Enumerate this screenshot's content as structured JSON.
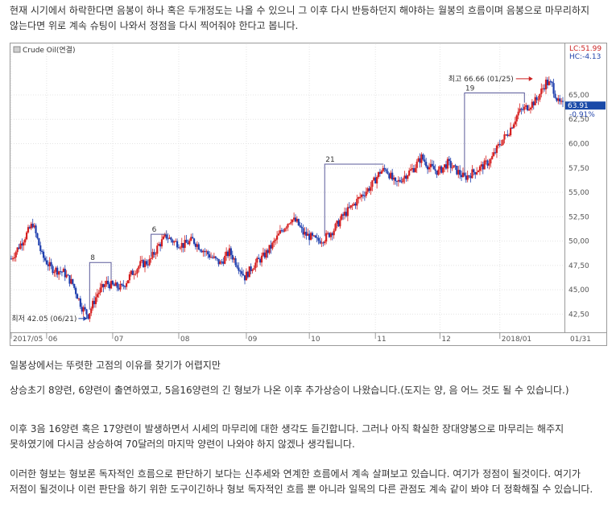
{
  "paragraphs": {
    "p1": "현재 시기에서 하락한다면 음봉이 하나 혹은 두개정도는 나올 수 있으니 그 이후 다시 반등하던지 해야하는 월봉의 흐름이며 음봉으로 마무리하지 않는다면 위로 계속 슈팅이 나와서 정점을 다시 찍어줘야 한다고 봅니다.",
    "p2": "일봉상에서는 뚜렷한 고점의 이유를 찾기가 어렵지만",
    "p3": "상승초기 8양련, 6양련이 출연하였고, 5음16양련의 긴 형보가 나온 이후 추가상승이 나왔습니다.(도지는 양, 음 어느 것도 될 수 있습니다.)",
    "p4": "이후 3음 16양련 혹은 17양련이 발생하면서 시세의 마무리에 대한 생각도 들긴합니다. 그러나 아직 확실한 장대양봉으로 마무리는 해주지 못하였기에 다시금 상승하여 70달러의 마지막 양련이 나와야 하지 않겠나 생각됩니다.",
    "p5": "이러한 형보는 형보론 독자적인 흐름으로 판단하기 보다는 신추세와 연계한 흐름에서 계속 살펴보고 있습니다. 여기가 정점이 될것이다. 여기가 저점이 될것이나 이런 판단을 하기 위한 도구이긴하나 형보 독자적인 흐름 뿐 아니라 일목의 다른 관점도 계속 같이 봐야 더 정확해질 수 있습니다."
  },
  "chart_data": {
    "type": "candlestick",
    "title": "Crude Oil(연결)",
    "y_ticks": [
      "65,00",
      "62,50",
      "60,00",
      "57,50",
      "55,00",
      "52,50",
      "50,00",
      "47,50",
      "45,00",
      "42,50"
    ],
    "ylim": [
      40.8,
      70.2
    ],
    "x_ticks": [
      {
        "label": "2017/05",
        "t": 0
      },
      {
        "label": "06",
        "t": 23
      },
      {
        "label": "07",
        "t": 66
      },
      {
        "label": "08",
        "t": 109
      },
      {
        "label": "09",
        "t": 153
      },
      {
        "label": "10",
        "t": 194
      },
      {
        "label": "11",
        "t": 237
      },
      {
        "label": "12",
        "t": 279
      },
      {
        "label": "2018/01",
        "t": 318
      },
      {
        "label": "01/31",
        "t": 358
      }
    ],
    "x_range": [
      0,
      359
    ],
    "legend": {
      "lc": "LC:51.99",
      "hc": "HC:-4.13"
    },
    "last_price": "63.91",
    "last_change": "-0.91%",
    "markers": {
      "high": {
        "text": "최고 66.66 (01/25)",
        "t": 340,
        "price": 66.66
      },
      "low": {
        "text": "최저 42.05 (06/21)",
        "t": 50,
        "price": 42.05
      }
    },
    "counts": [
      {
        "label": "8",
        "t1": 51,
        "t2": 65,
        "price": 47.8
      },
      {
        "label": "6",
        "t1": 91,
        "t2": 101,
        "price": 50.7
      },
      {
        "label": "21",
        "t1": 204,
        "t2": 242,
        "price": 57.9
      },
      {
        "label": "19",
        "t1": 295,
        "t2": 334,
        "price": 65.2
      }
    ],
    "anchors": [
      [
        0,
        48.2
      ],
      [
        8,
        50.2
      ],
      [
        14,
        51.8
      ],
      [
        20,
        48.5
      ],
      [
        26,
        47.2
      ],
      [
        34,
        46.8
      ],
      [
        40,
        45.6
      ],
      [
        46,
        43.2
      ],
      [
        50,
        42.4
      ],
      [
        56,
        44.6
      ],
      [
        62,
        45.7
      ],
      [
        66,
        45.4
      ],
      [
        72,
        45.2
      ],
      [
        78,
        46.6
      ],
      [
        84,
        47.6
      ],
      [
        90,
        47.9
      ],
      [
        96,
        49.6
      ],
      [
        101,
        50.5
      ],
      [
        106,
        49.9
      ],
      [
        112,
        49.6
      ],
      [
        118,
        50.1
      ],
      [
        124,
        49.2
      ],
      [
        130,
        48.4
      ],
      [
        136,
        47.7
      ],
      [
        142,
        48.9
      ],
      [
        148,
        47.4
      ],
      [
        152,
        46.3
      ],
      [
        158,
        47.6
      ],
      [
        164,
        48.4
      ],
      [
        170,
        49.6
      ],
      [
        176,
        51.1
      ],
      [
        182,
        52.3
      ],
      [
        186,
        51.9
      ],
      [
        190,
        50.8
      ],
      [
        195,
        50.4
      ],
      [
        199,
        50.0
      ],
      [
        204,
        50.3
      ],
      [
        210,
        51.2
      ],
      [
        216,
        52.6
      ],
      [
        222,
        53.6
      ],
      [
        228,
        54.7
      ],
      [
        234,
        55.6
      ],
      [
        240,
        57.1
      ],
      [
        244,
        57.4
      ],
      [
        250,
        55.8
      ],
      [
        256,
        56.7
      ],
      [
        262,
        57.5
      ],
      [
        267,
        58.6
      ],
      [
        272,
        57.6
      ],
      [
        278,
        57.1
      ],
      [
        284,
        58.0
      ],
      [
        290,
        57.2
      ],
      [
        295,
        56.5
      ],
      [
        300,
        57.0
      ],
      [
        306,
        57.6
      ],
      [
        312,
        58.3
      ],
      [
        318,
        60.0
      ],
      [
        324,
        61.3
      ],
      [
        330,
        63.2
      ],
      [
        336,
        63.8
      ],
      [
        342,
        64.5
      ],
      [
        348,
        66.3
      ],
      [
        352,
        66.0
      ],
      [
        356,
        64.2
      ],
      [
        359,
        63.9
      ]
    ]
  }
}
